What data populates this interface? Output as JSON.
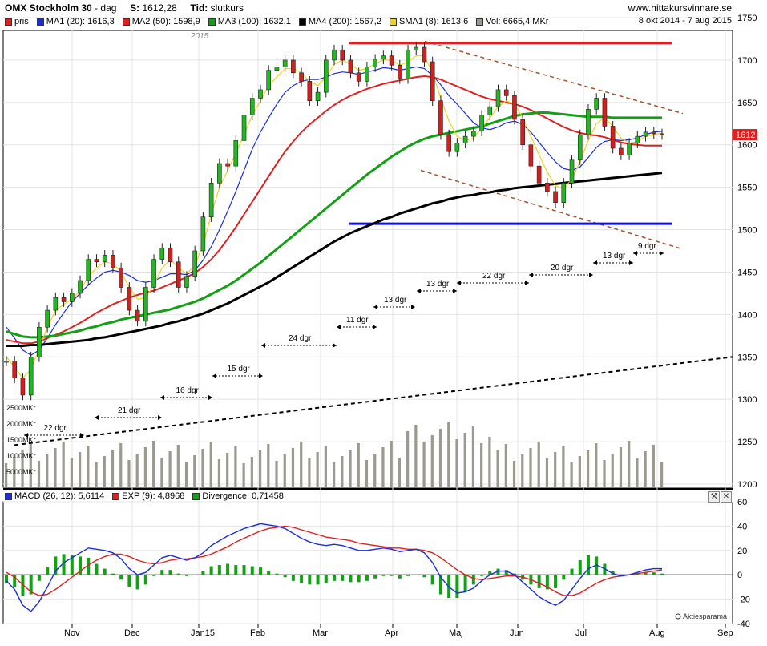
{
  "header": {
    "title": "OMX Stockholm 30",
    "period": "dag",
    "price_label": "S:",
    "price_value": "1612,28",
    "tid_label": "Tid:",
    "tid_value": "slutkurs",
    "site": "www.hittakursvinnare.se",
    "date_range": "8 okt 2014 - 7 aug 2015"
  },
  "legend_main": [
    {
      "label": "pris",
      "color": "#e02020"
    },
    {
      "label": "MA1 (20): 1616,3",
      "color": "#1a2ee0"
    },
    {
      "label": "MA2 (50): 1598,9",
      "color": "#e02020"
    },
    {
      "label": "MA3 (100): 1632,1",
      "color": "#14a014"
    },
    {
      "label": "MA4 (200): 1567,2",
      "color": "#000000"
    },
    {
      "label": "SMA1 (8): 1613,6",
      "color": "#f2d21c"
    },
    {
      "label": "Vol: 6665,4 MKr",
      "color": "#9a9a8e"
    }
  ],
  "legend_macd": [
    {
      "label": "MACD (26, 12): 5,6114",
      "color": "#1a2ee0"
    },
    {
      "label": "EXP (9): 4,8968",
      "color": "#e02020"
    },
    {
      "label": "Divergence: 0,71458",
      "color": "#14a014"
    }
  ],
  "last_price_tag": "1612",
  "watermark": "Aktiesparama",
  "year_marker": "2015",
  "chart_data": {
    "type": "line",
    "price_axis": {
      "ylim": [
        1200,
        1750
      ],
      "ticks": [
        1200,
        1250,
        1300,
        1350,
        1400,
        1450,
        1500,
        1550,
        1600,
        1650,
        1700,
        1750
      ]
    },
    "macd_axis": {
      "ylim": [
        -40,
        60
      ],
      "ticks": [
        -40,
        -20,
        0,
        20,
        40,
        60
      ]
    },
    "x_labels": [
      "Nov",
      "Dec",
      "Jan15",
      "Feb",
      "Mar",
      "Apr",
      "Maj",
      "Jun",
      "Jul",
      "Aug",
      "Sep"
    ],
    "volume_labels": [
      "2500MKr",
      "2000MKr",
      "1500MKr",
      "1000MKr",
      "5000MKr"
    ],
    "horizontal_levels": [
      {
        "name": "resistance",
        "value": 1720,
        "color": "#e02020",
        "from": "Mar",
        "to": "Aug"
      },
      {
        "name": "support",
        "value": 1507,
        "color": "#1010d0",
        "from": "Mar",
        "to": "Aug"
      }
    ],
    "cycle_annotations": [
      "22 dgr",
      "21 dgr",
      "16 dgr",
      "15 dgr",
      "24 dgr",
      "11 dgr",
      "13 dgr",
      "13 dgr",
      "22 dgr",
      "20 dgr",
      "13 dgr",
      "9 dgr"
    ],
    "series": [
      {
        "name": "pris",
        "color": "#e02020",
        "values": [
          1345,
          1325,
          1305,
          1350,
          1385,
          1405,
          1420,
          1415,
          1425,
          1440,
          1465,
          1462,
          1470,
          1455,
          1432,
          1405,
          1392,
          1432,
          1465,
          1478,
          1462,
          1432,
          1445,
          1475,
          1515,
          1555,
          1578,
          1575,
          1605,
          1635,
          1655,
          1665,
          1688,
          1692,
          1700,
          1685,
          1675,
          1652,
          1662,
          1700,
          1712,
          1700,
          1685,
          1675,
          1692,
          1701,
          1705,
          1694,
          1678,
          1712,
          1715,
          1698,
          1652,
          1612,
          1592,
          1602,
          1610,
          1616,
          1635,
          1645,
          1665,
          1658,
          1630,
          1600,
          1575,
          1555,
          1545,
          1532,
          1555,
          1582,
          1612,
          1642,
          1655,
          1622,
          1596,
          1588,
          1602,
          1610,
          1615,
          1613,
          1612
        ]
      },
      {
        "name": "MA1 (20)",
        "color": "#1a2ee0",
        "values": [
          1385,
          1372,
          1358,
          1352,
          1358,
          1372,
          1388,
          1402,
          1415,
          1425,
          1435,
          1443,
          1450,
          1452,
          1450,
          1446,
          1440,
          1438,
          1440,
          1444,
          1448,
          1448,
          1447,
          1452,
          1464,
          1480,
          1500,
          1522,
          1545,
          1570,
          1595,
          1615,
          1632,
          1648,
          1662,
          1670,
          1675,
          1677,
          1677,
          1680,
          1684,
          1686,
          1685,
          1683,
          1686,
          1688,
          1691,
          1690,
          1688,
          1690,
          1692,
          1690,
          1682,
          1671,
          1658,
          1648,
          1637,
          1626,
          1620,
          1618,
          1621,
          1626,
          1628,
          1624,
          1615,
          1603,
          1591,
          1580,
          1572,
          1570,
          1574,
          1585,
          1597,
          1604,
          1606,
          1605,
          1606,
          1608,
          1612,
          1615,
          1616
        ]
      },
      {
        "name": "MA2 (50)",
        "color": "#e02020",
        "values": [
          1370,
          1368,
          1366,
          1366,
          1368,
          1372,
          1376,
          1380,
          1385,
          1390,
          1396,
          1402,
          1407,
          1412,
          1416,
          1420,
          1423,
          1426,
          1428,
          1432,
          1436,
          1440,
          1444,
          1449,
          1456,
          1465,
          1476,
          1489,
          1503,
          1518,
          1533,
          1548,
          1563,
          1578,
          1592,
          1604,
          1615,
          1624,
          1632,
          1640,
          1647,
          1653,
          1658,
          1662,
          1666,
          1669,
          1672,
          1674,
          1676,
          1678,
          1680,
          1681,
          1680,
          1677,
          1673,
          1669,
          1665,
          1661,
          1657,
          1654,
          1652,
          1650,
          1648,
          1645,
          1641,
          1636,
          1631,
          1626,
          1621,
          1617,
          1614,
          1612,
          1611,
          1609,
          1606,
          1603,
          1601,
          1600,
          1599,
          1599,
          1599
        ]
      },
      {
        "name": "MA3 (100)",
        "color": "#14a014",
        "values": [
          1380,
          1377,
          1374,
          1373,
          1373,
          1374,
          1375,
          1377,
          1379,
          1381,
          1384,
          1386,
          1389,
          1391,
          1394,
          1396,
          1398,
          1400,
          1402,
          1404,
          1406,
          1409,
          1412,
          1415,
          1419,
          1424,
          1429,
          1434,
          1440,
          1447,
          1454,
          1461,
          1469,
          1477,
          1485,
          1493,
          1501,
          1509,
          1517,
          1525,
          1533,
          1541,
          1549,
          1557,
          1565,
          1572,
          1579,
          1586,
          1592,
          1598,
          1603,
          1607,
          1610,
          1612,
          1614,
          1616,
          1618,
          1620,
          1622,
          1625,
          1628,
          1631,
          1634,
          1636,
          1637,
          1638,
          1638,
          1637,
          1636,
          1635,
          1634,
          1633,
          1633,
          1633,
          1632,
          1632,
          1632,
          1632,
          1632,
          1632,
          1632
        ]
      },
      {
        "name": "MA4 (200)",
        "color": "#000000",
        "values": [
          1363,
          1363,
          1363,
          1364,
          1364,
          1365,
          1366,
          1367,
          1368,
          1369,
          1370,
          1372,
          1373,
          1375,
          1377,
          1379,
          1381,
          1383,
          1385,
          1387,
          1390,
          1392,
          1395,
          1398,
          1401,
          1405,
          1409,
          1413,
          1418,
          1423,
          1428,
          1433,
          1438,
          1444,
          1450,
          1456,
          1462,
          1468,
          1474,
          1480,
          1486,
          1491,
          1496,
          1500,
          1504,
          1508,
          1512,
          1515,
          1519,
          1522,
          1525,
          1528,
          1531,
          1533,
          1536,
          1538,
          1540,
          1541,
          1543,
          1544,
          1546,
          1547,
          1549,
          1550,
          1551,
          1552,
          1553,
          1554,
          1555,
          1556,
          1557,
          1558,
          1559,
          1560,
          1561,
          1562,
          1563,
          1564,
          1565,
          1566,
          1567
        ]
      },
      {
        "name": "SMA1 (8)",
        "color": "#f2d21c",
        "values": [
          1350,
          1338,
          1325,
          1335,
          1360,
          1385,
          1405,
          1412,
          1418,
          1428,
          1445,
          1455,
          1462,
          1460,
          1450,
          1432,
          1418,
          1420,
          1435,
          1455,
          1465,
          1455,
          1448,
          1458,
          1482,
          1518,
          1550,
          1570,
          1590,
          1612,
          1635,
          1652,
          1670,
          1680,
          1690,
          1690,
          1685,
          1675,
          1670,
          1680,
          1695,
          1700,
          1695,
          1688,
          1690,
          1696,
          1700,
          1700,
          1694,
          1698,
          1705,
          1705,
          1685,
          1655,
          1628,
          1610,
          1605,
          1608,
          1620,
          1632,
          1645,
          1652,
          1648,
          1632,
          1610,
          1588,
          1568,
          1552,
          1548,
          1560,
          1580,
          1605,
          1625,
          1632,
          1622,
          1608,
          1602,
          1604,
          1610,
          1612,
          1614
        ]
      }
    ],
    "macd": {
      "macd_values": [
        -5,
        -12,
        -25,
        -30,
        -22,
        -10,
        3,
        10,
        14,
        18,
        22,
        21,
        20,
        18,
        13,
        5,
        0,
        2,
        8,
        14,
        16,
        14,
        12,
        14,
        18,
        24,
        28,
        32,
        35,
        38,
        40,
        42,
        41,
        40,
        38,
        34,
        30,
        27,
        25,
        24,
        25,
        24,
        22,
        20,
        20,
        21,
        22,
        21,
        19,
        20,
        21,
        18,
        10,
        -2,
        -10,
        -15,
        -14,
        -11,
        -5,
        0,
        3,
        3,
        0,
        -6,
        -12,
        -18,
        -22,
        -25,
        -21,
        -12,
        -3,
        5,
        8,
        5,
        1,
        -1,
        0,
        2,
        4,
        5,
        5
      ],
      "signal_values": [
        2,
        -2,
        -8,
        -14,
        -17,
        -16,
        -12,
        -7,
        -2,
        3,
        8,
        12,
        15,
        17,
        17,
        15,
        12,
        10,
        9,
        10,
        12,
        13,
        13,
        14,
        15,
        17,
        20,
        23,
        27,
        30,
        33,
        36,
        38,
        39,
        40,
        39,
        37,
        35,
        33,
        31,
        30,
        29,
        28,
        26,
        25,
        24,
        23,
        22,
        22,
        21,
        21,
        20,
        18,
        14,
        9,
        4,
        0,
        -3,
        -4,
        -3,
        -2,
        -1,
        -1,
        -2,
        -4,
        -7,
        -10,
        -14,
        -17,
        -17,
        -15,
        -11,
        -7,
        -4,
        -2,
        -1,
        0,
        1,
        2,
        3,
        4
      ],
      "divergence_values": [
        -7,
        -10,
        -17,
        -16,
        -5,
        6,
        15,
        17,
        16,
        15,
        14,
        9,
        5,
        1,
        -4,
        -10,
        -12,
        -8,
        -1,
        4,
        4,
        1,
        -1,
        0,
        3,
        7,
        8,
        9,
        8,
        8,
        7,
        6,
        3,
        1,
        -2,
        -5,
        -7,
        -8,
        -8,
        -7,
        -5,
        -5,
        -6,
        -6,
        -5,
        -3,
        -1,
        -1,
        -3,
        -1,
        0,
        -2,
        -8,
        -16,
        -19,
        -19,
        -14,
        -8,
        -1,
        3,
        5,
        4,
        1,
        -4,
        -8,
        -11,
        -12,
        -11,
        -4,
        5,
        12,
        16,
        15,
        9,
        3,
        0,
        0,
        1,
        2,
        2,
        1
      ]
    }
  }
}
